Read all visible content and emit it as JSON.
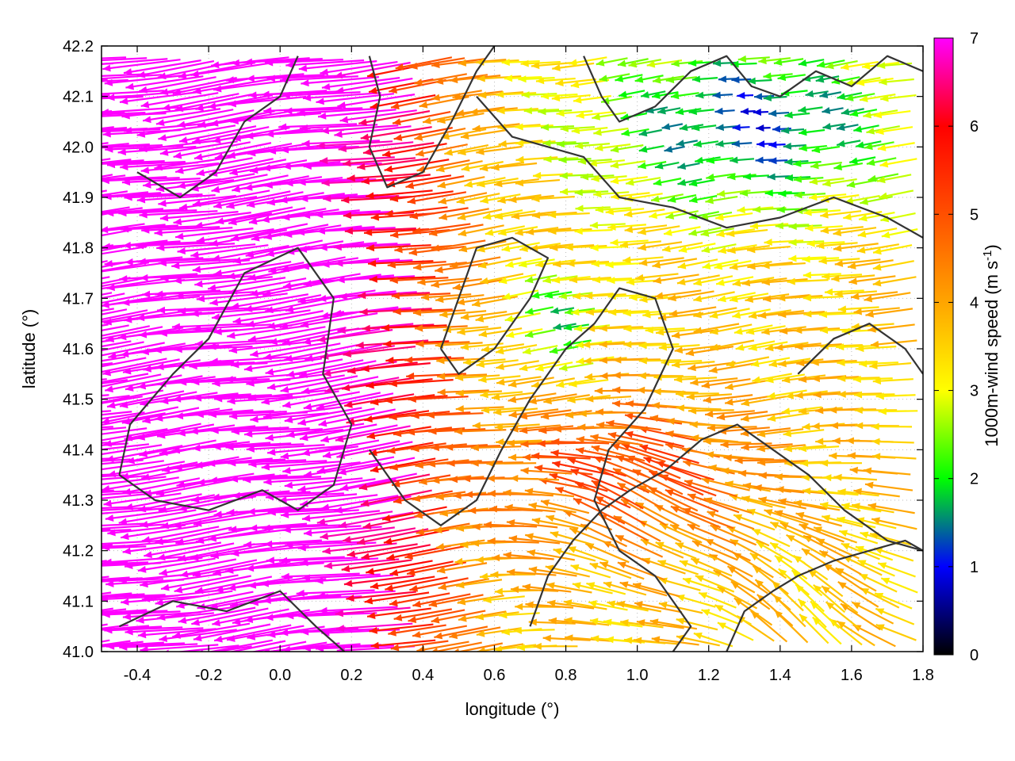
{
  "chart_data": {
    "type": "vector-field",
    "xlabel": "longitude (°)",
    "ylabel": "latitude (°)",
    "colorbar_label": "1000m-wind speed (m s-1)",
    "colorbar_label_main": "1000m-wind speed (m s",
    "colorbar_label_sup": "-1",
    "colorbar_label_end": ")",
    "xlim": [
      -0.5,
      1.8
    ],
    "ylim": [
      41.0,
      42.2
    ],
    "clim": [
      0,
      7
    ],
    "xticks": [
      -0.4,
      -0.2,
      0.0,
      0.2,
      0.4,
      0.6,
      0.8,
      1.0,
      1.2,
      1.4,
      1.6,
      1.8
    ],
    "xtick_labels": [
      "-0.4",
      "-0.2",
      "0.0",
      "0.2",
      "0.4",
      "0.6",
      "0.8",
      "1.0",
      "1.2",
      "1.4",
      "1.6",
      "1.8"
    ],
    "yticks": [
      41.0,
      41.1,
      41.2,
      41.3,
      41.4,
      41.5,
      41.6,
      41.7,
      41.8,
      41.9,
      42.0,
      42.1,
      42.2
    ],
    "ytick_labels": [
      "41.0",
      "41.1",
      "41.2",
      "41.3",
      "41.4",
      "41.5",
      "41.6",
      "41.7",
      "41.8",
      "41.9",
      "42.0",
      "42.1",
      "42.2"
    ],
    "cticks": [
      0,
      1,
      2,
      3,
      4,
      5,
      6,
      7
    ],
    "ctick_labels": [
      "0",
      "1",
      "2",
      "3",
      "4",
      "5",
      "6",
      "7"
    ],
    "colormap": [
      "#000000",
      "#0000ff",
      "#00ff00",
      "#ffff00",
      "#ffa500",
      "#ff5000",
      "#ff0000",
      "#ff00ff"
    ],
    "grid": true,
    "wind_regions": [
      {
        "name": "west",
        "lon_range": [
          -0.5,
          0.45
        ],
        "lat_range": [
          41.0,
          42.2
        ],
        "speed": 7.0,
        "direction": "westward"
      },
      {
        "name": "north-east",
        "lon_range": [
          0.9,
          1.8
        ],
        "lat_range": [
          41.8,
          42.2
        ],
        "speed": 1.5,
        "direction": "westward"
      },
      {
        "name": "centre",
        "lon_range": [
          0.6,
          1.0
        ],
        "lat_range": [
          41.5,
          41.8
        ],
        "speed": 2.5,
        "direction": "westward"
      },
      {
        "name": "south-east",
        "lon_range": [
          1.2,
          1.8
        ],
        "lat_range": [
          41.0,
          41.25
        ],
        "speed": 3.5,
        "direction": "north-westward"
      }
    ],
    "contours": [
      {
        "name": "c1",
        "points": [
          [
            -0.45,
            41.35
          ],
          [
            -0.35,
            41.3
          ],
          [
            -0.2,
            41.28
          ],
          [
            -0.05,
            41.32
          ],
          [
            0.05,
            41.28
          ],
          [
            0.15,
            41.33
          ],
          [
            0.2,
            41.45
          ],
          [
            0.12,
            41.55
          ],
          [
            0.15,
            41.7
          ],
          [
            0.05,
            41.8
          ],
          [
            -0.1,
            41.75
          ],
          [
            -0.2,
            41.62
          ],
          [
            -0.3,
            41.55
          ],
          [
            -0.42,
            41.45
          ],
          [
            -0.45,
            41.35
          ]
        ]
      },
      {
        "name": "c2",
        "points": [
          [
            0.25,
            41.4
          ],
          [
            0.35,
            41.3
          ],
          [
            0.45,
            41.25
          ],
          [
            0.55,
            41.3
          ],
          [
            0.62,
            41.4
          ],
          [
            0.7,
            41.5
          ],
          [
            0.8,
            41.6
          ],
          [
            0.88,
            41.65
          ],
          [
            0.95,
            41.72
          ],
          [
            1.05,
            41.7
          ],
          [
            1.1,
            41.6
          ],
          [
            1.02,
            41.48
          ],
          [
            0.92,
            41.4
          ],
          [
            0.88,
            41.3
          ],
          [
            0.95,
            41.2
          ],
          [
            1.05,
            41.15
          ],
          [
            1.15,
            41.05
          ],
          [
            1.1,
            41.0
          ]
        ]
      },
      {
        "name": "c3",
        "points": [
          [
            0.7,
            41.05
          ],
          [
            0.75,
            41.15
          ],
          [
            0.82,
            41.22
          ],
          [
            0.9,
            41.28
          ],
          [
            0.98,
            41.32
          ],
          [
            1.08,
            41.36
          ],
          [
            1.18,
            41.42
          ],
          [
            1.28,
            41.45
          ],
          [
            1.38,
            41.4
          ],
          [
            1.48,
            41.35
          ],
          [
            1.58,
            41.28
          ],
          [
            1.7,
            41.22
          ],
          [
            1.8,
            41.2
          ]
        ]
      },
      {
        "name": "c4",
        "points": [
          [
            0.55,
            42.1
          ],
          [
            0.65,
            42.02
          ],
          [
            0.75,
            42.0
          ],
          [
            0.85,
            41.98
          ],
          [
            0.95,
            41.9
          ],
          [
            1.1,
            41.88
          ],
          [
            1.25,
            41.84
          ],
          [
            1.4,
            41.86
          ],
          [
            1.55,
            41.9
          ],
          [
            1.7,
            41.86
          ],
          [
            1.8,
            41.82
          ]
        ]
      },
      {
        "name": "c5",
        "points": [
          [
            0.25,
            42.18
          ],
          [
            0.28,
            42.1
          ],
          [
            0.25,
            42.0
          ],
          [
            0.3,
            41.92
          ],
          [
            0.4,
            41.95
          ],
          [
            0.48,
            42.05
          ],
          [
            0.55,
            42.15
          ],
          [
            0.6,
            42.2
          ]
        ]
      },
      {
        "name": "c6",
        "points": [
          [
            1.25,
            41.0
          ],
          [
            1.3,
            41.08
          ],
          [
            1.38,
            41.12
          ],
          [
            1.45,
            41.15
          ],
          [
            1.55,
            41.18
          ],
          [
            1.65,
            41.2
          ],
          [
            1.75,
            41.22
          ],
          [
            1.8,
            41.2
          ]
        ]
      },
      {
        "name": "c7",
        "points": [
          [
            0.85,
            42.18
          ],
          [
            0.9,
            42.1
          ],
          [
            0.95,
            42.05
          ],
          [
            1.05,
            42.08
          ],
          [
            1.15,
            42.15
          ],
          [
            1.25,
            42.18
          ],
          [
            1.32,
            42.12
          ],
          [
            1.4,
            42.1
          ],
          [
            1.5,
            42.15
          ],
          [
            1.6,
            42.12
          ],
          [
            1.7,
            42.18
          ],
          [
            1.8,
            42.15
          ]
        ]
      },
      {
        "name": "c8",
        "points": [
          [
            -0.45,
            41.05
          ],
          [
            -0.3,
            41.1
          ],
          [
            -0.15,
            41.08
          ],
          [
            0.0,
            41.12
          ],
          [
            0.1,
            41.05
          ],
          [
            0.18,
            41.0
          ]
        ]
      },
      {
        "name": "c9",
        "points": [
          [
            -0.4,
            41.95
          ],
          [
            -0.28,
            41.9
          ],
          [
            -0.18,
            41.95
          ],
          [
            -0.1,
            42.05
          ],
          [
            0.0,
            42.1
          ],
          [
            0.05,
            42.18
          ]
        ]
      },
      {
        "name": "c10",
        "points": [
          [
            0.45,
            41.6
          ],
          [
            0.5,
            41.7
          ],
          [
            0.55,
            41.8
          ],
          [
            0.65,
            41.82
          ],
          [
            0.75,
            41.78
          ],
          [
            0.7,
            41.7
          ],
          [
            0.6,
            41.6
          ],
          [
            0.5,
            41.55
          ],
          [
            0.45,
            41.6
          ]
        ]
      },
      {
        "name": "c11",
        "points": [
          [
            1.45,
            41.55
          ],
          [
            1.55,
            41.62
          ],
          [
            1.65,
            41.65
          ],
          [
            1.75,
            41.6
          ],
          [
            1.8,
            41.55
          ]
        ]
      }
    ]
  }
}
